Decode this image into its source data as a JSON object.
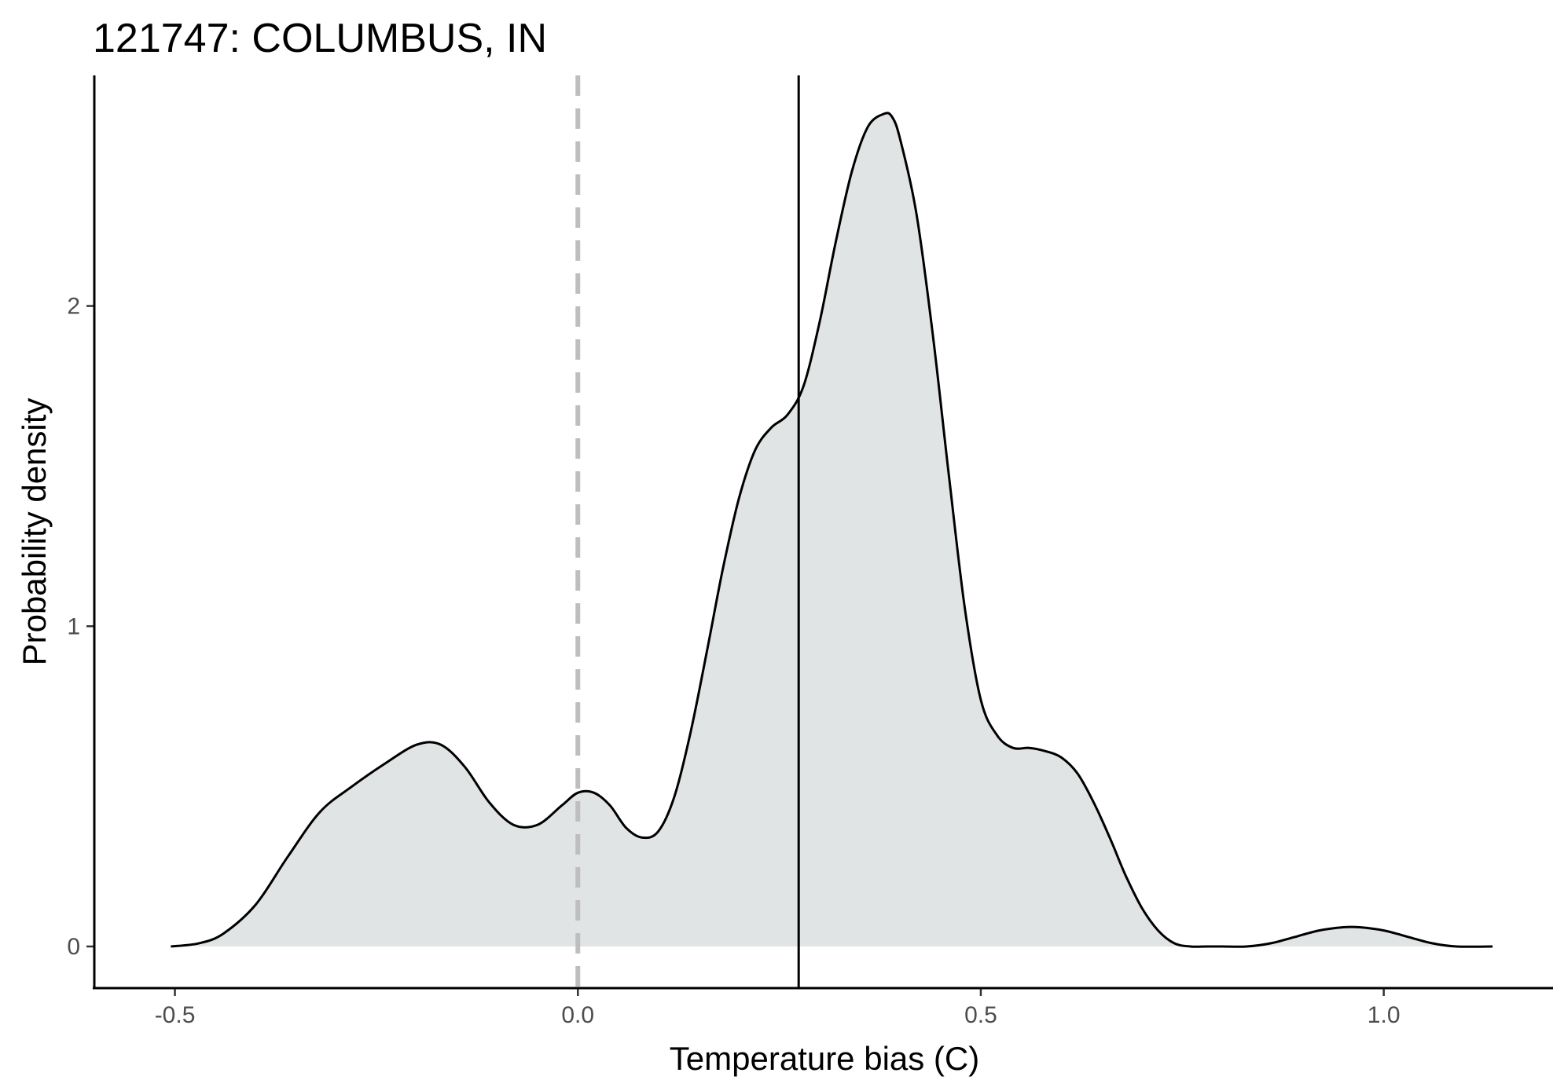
{
  "chart_data": {
    "type": "area",
    "title": "121747: COLUMBUS, IN",
    "xlabel": "Temperature bias (C)",
    "ylabel": "Probability density",
    "xlim": [
      -0.6,
      1.21
    ],
    "ylim": [
      -0.13,
      2.72
    ],
    "x_ticks": [
      {
        "value": -0.5,
        "label": "-0.5"
      },
      {
        "value": 0.0,
        "label": "0.0"
      },
      {
        "value": 0.5,
        "label": "0.5"
      },
      {
        "value": 1.0,
        "label": "1.0"
      }
    ],
    "y_ticks": [
      {
        "value": 0,
        "label": "0"
      },
      {
        "value": 1,
        "label": "1"
      },
      {
        "value": 2,
        "label": "2"
      }
    ],
    "grid": false,
    "fill_color": "#e1e4e4",
    "line_color": "#000000",
    "reference_lines": [
      {
        "x": 0.0,
        "style": "dashed",
        "color": "#bebebe"
      },
      {
        "x": 0.274,
        "style": "solid",
        "color": "#000000"
      }
    ],
    "series": [
      {
        "x": [
          -0.505,
          -0.47,
          -0.44,
          -0.4,
          -0.36,
          -0.32,
          -0.28,
          -0.24,
          -0.2,
          -0.17,
          -0.14,
          -0.11,
          -0.08,
          -0.05,
          -0.02,
          0.0,
          0.02,
          0.04,
          0.06,
          0.08,
          0.1,
          0.12,
          0.14,
          0.16,
          0.18,
          0.2,
          0.22,
          0.24,
          0.26,
          0.28,
          0.3,
          0.32,
          0.34,
          0.36,
          0.38,
          0.39,
          0.4,
          0.42,
          0.44,
          0.46,
          0.48,
          0.5,
          0.52,
          0.54,
          0.56,
          0.58,
          0.6,
          0.62,
          0.64,
          0.66,
          0.68,
          0.7,
          0.72,
          0.74,
          0.76,
          0.78,
          0.8,
          0.83,
          0.86,
          0.89,
          0.92,
          0.95,
          0.97,
          1.0,
          1.03,
          1.06,
          1.09,
          1.135
        ],
        "values": [
          0.0,
          0.01,
          0.04,
          0.13,
          0.28,
          0.42,
          0.5,
          0.57,
          0.63,
          0.63,
          0.56,
          0.45,
          0.38,
          0.38,
          0.44,
          0.48,
          0.48,
          0.44,
          0.37,
          0.34,
          0.36,
          0.47,
          0.67,
          0.92,
          1.18,
          1.4,
          1.55,
          1.62,
          1.66,
          1.75,
          1.95,
          2.2,
          2.42,
          2.56,
          2.6,
          2.59,
          2.52,
          2.29,
          1.92,
          1.48,
          1.06,
          0.77,
          0.66,
          0.62,
          0.62,
          0.61,
          0.59,
          0.54,
          0.45,
          0.34,
          0.22,
          0.12,
          0.05,
          0.01,
          0.0,
          0.0,
          0.0,
          0.0,
          0.01,
          0.03,
          0.05,
          0.06,
          0.06,
          0.05,
          0.03,
          0.01,
          0.0,
          0.0
        ]
      }
    ]
  }
}
